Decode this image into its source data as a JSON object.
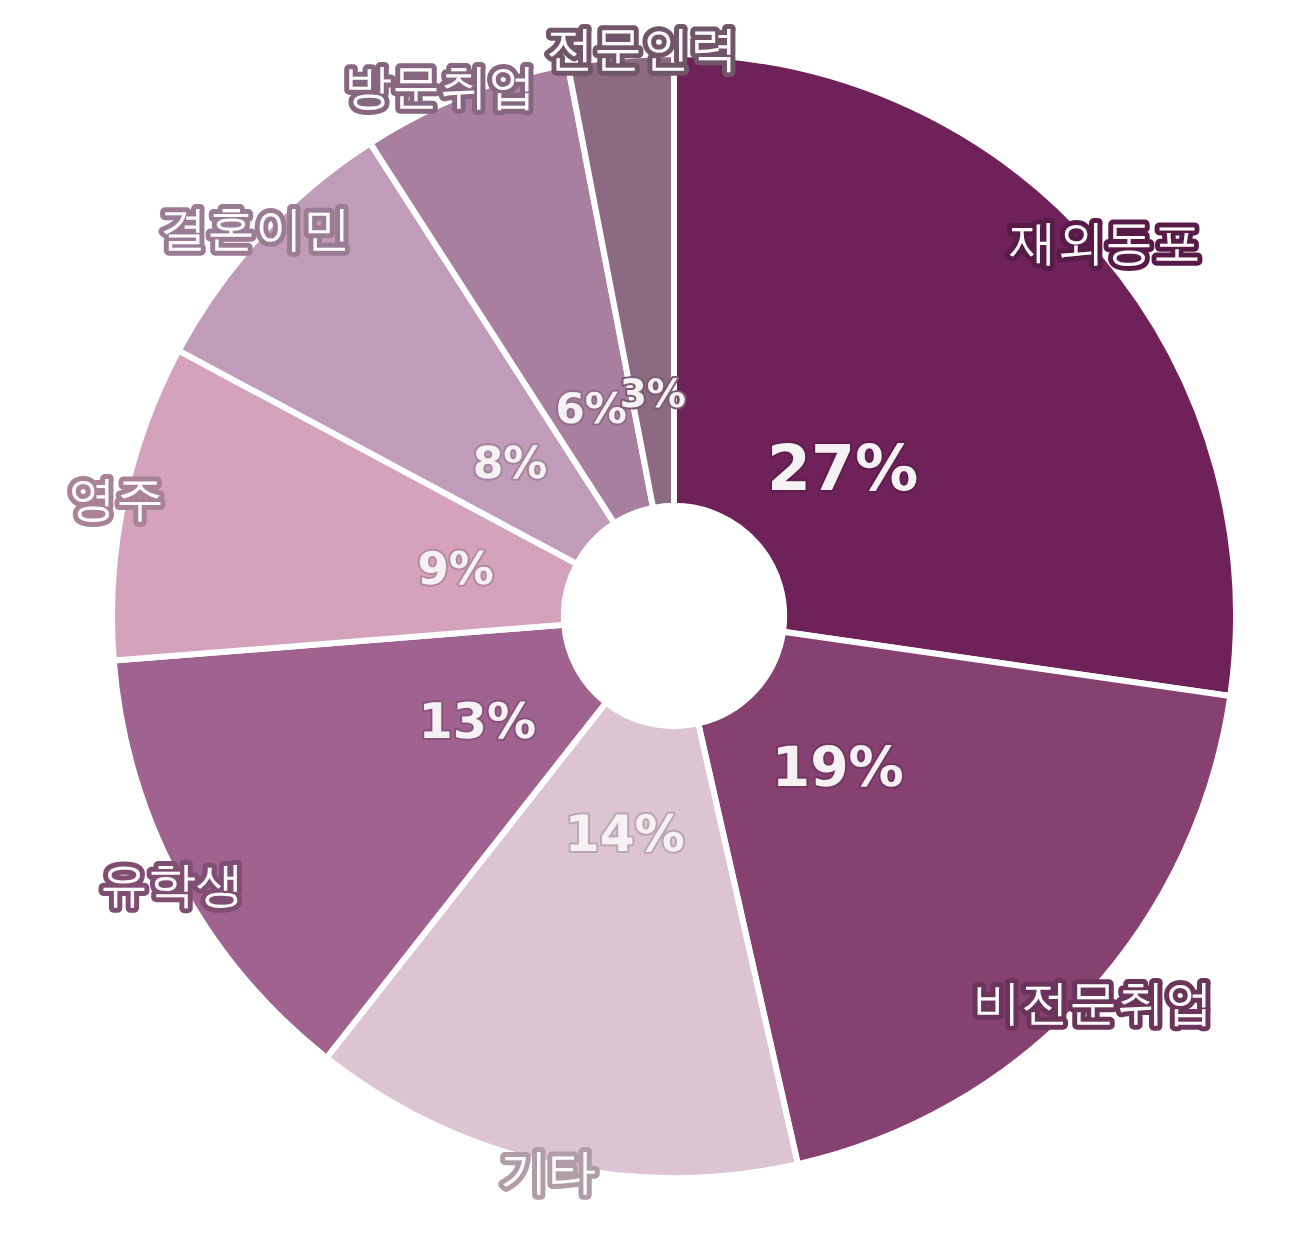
{
  "chart_data": {
    "type": "donut",
    "categories": [
      "재외동포",
      "비전문취업",
      "기타",
      "유학생",
      "영주",
      "결혼이민",
      "방문취업",
      "전문인력"
    ],
    "values": [
      27,
      19,
      14,
      13,
      9,
      8,
      6,
      3
    ],
    "value_labels": [
      "27%",
      "19%",
      "14%",
      "13%",
      "9%",
      "8%",
      "6%",
      "3%"
    ],
    "colors": [
      "#6e2259",
      "#864170",
      "#dcc4d2",
      "#a0628f",
      "#d5a2bb",
      "#c19cb9",
      "#a97f9f",
      "#8c6b82"
    ]
  }
}
